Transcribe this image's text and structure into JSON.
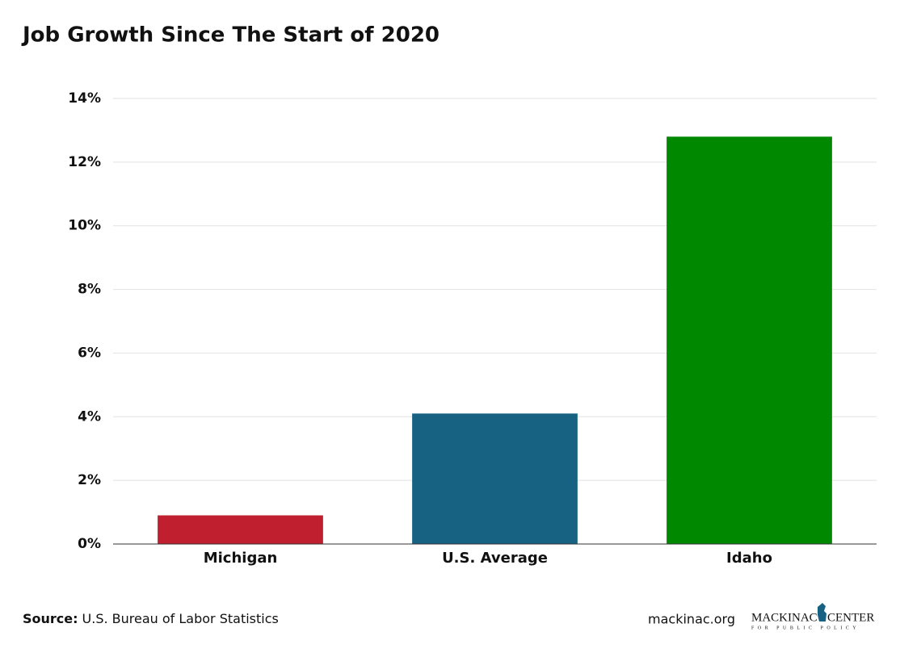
{
  "chart_data": {
    "type": "bar",
    "title": "Job Growth Since The Start of 2020",
    "categories": [
      "Michigan",
      "U.S. Average",
      "Idaho"
    ],
    "values": [
      0.9,
      4.1,
      12.8
    ],
    "colors": [
      "#c01f30",
      "#176283",
      "#008800"
    ],
    "ylim": [
      0,
      14
    ],
    "yticks": [
      {
        "value": 0,
        "label": "0%"
      },
      {
        "value": 2,
        "label": "2%"
      },
      {
        "value": 4,
        "label": "4%"
      },
      {
        "value": 6,
        "label": "6%"
      },
      {
        "value": 8,
        "label": "8%"
      },
      {
        "value": 10,
        "label": "10%"
      },
      {
        "value": 12,
        "label": "12%"
      },
      {
        "value": 14,
        "label": "14%"
      }
    ],
    "grid": true
  },
  "footer": {
    "source_label": "Source:",
    "source": "U.S. Bureau of Labor Statistics",
    "website": "mackinac.org",
    "logo_left": "MACKINAC",
    "logo_right": "CENTER",
    "logo_tagline": "FOR PUBLIC POLICY"
  }
}
